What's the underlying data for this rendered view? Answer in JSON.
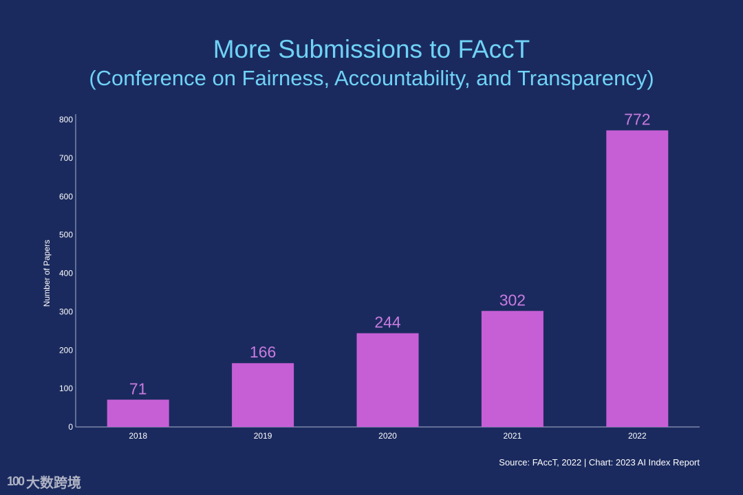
{
  "header": {
    "title": "More Submissions to FAccT",
    "subtitle": "(Conference on Fairness, Accountability, and Transparency)"
  },
  "chart_data": {
    "type": "bar",
    "categories": [
      "2018",
      "2019",
      "2020",
      "2021",
      "2022"
    ],
    "values": [
      71,
      166,
      244,
      302,
      772
    ],
    "ylabel": "Number of Papers",
    "xlabel": "",
    "ylim": [
      0,
      800
    ],
    "yticks": [
      0,
      100,
      200,
      300,
      400,
      500,
      600,
      700,
      800
    ],
    "grid": false,
    "bar_color": "#c65fd6",
    "label_color": "#c87be0"
  },
  "footer": {
    "source": "Source: FAccT, 2022 | Chart: 2023 AI Index Report"
  },
  "watermark": {
    "logo": "100",
    "text": "大数跨境"
  },
  "colors": {
    "background": "#1b2a5e",
    "title": "#6fd3f7",
    "axis": "#aab4cf"
  }
}
